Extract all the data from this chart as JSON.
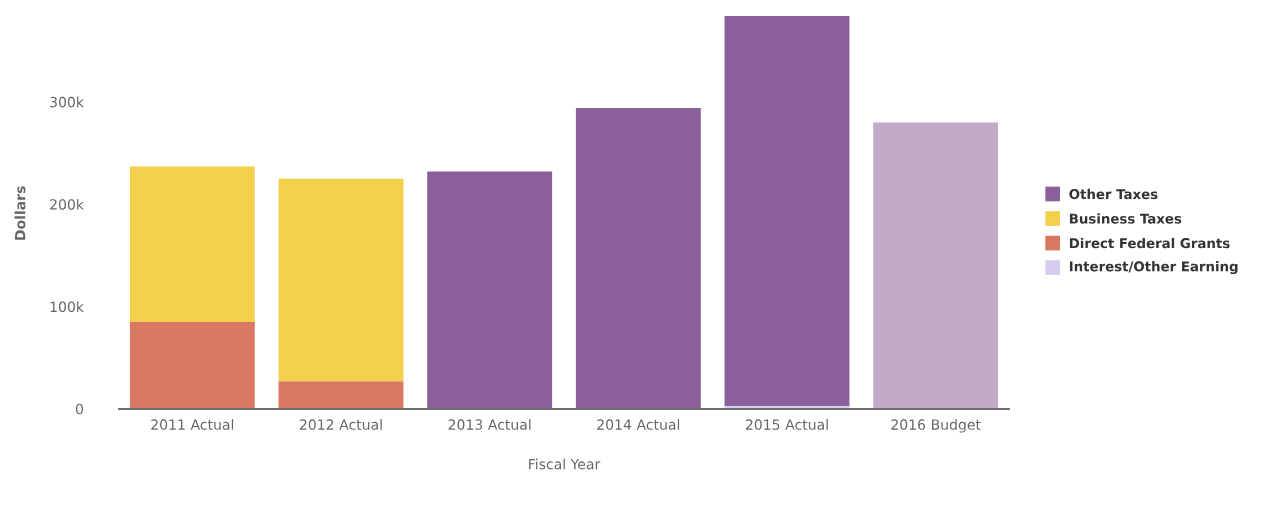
{
  "chart_data": {
    "type": "bar",
    "stacked": true,
    "xlabel": "Fiscal Year",
    "ylabel": "Dollars",
    "categories": [
      "2011 Actual",
      "2012 Actual",
      "2013 Actual",
      "2014 Actual",
      "2015 Actual",
      "2016 Budget"
    ],
    "series": [
      {
        "name": "Interest/Other Earning",
        "color": "#d5ccf0",
        "values": [
          null,
          null,
          null,
          null,
          3000,
          null
        ]
      },
      {
        "name": "Direct Federal Grants",
        "color": "#d97862",
        "values": [
          85000,
          27000,
          null,
          null,
          null,
          null
        ]
      },
      {
        "name": "Business Taxes",
        "color": "#f2d04b",
        "values": [
          152000,
          198000,
          null,
          null,
          null,
          null
        ]
      },
      {
        "name": "Other Taxes",
        "color": "#8b5f9a",
        "colors": [
          "#8b5f9a",
          "#8b5f9a",
          "#8b5f9a",
          "#8b5f9a",
          "#8b5f9a",
          "#c3aac9"
        ],
        "values": [
          null,
          null,
          232000,
          294000,
          381000,
          280000
        ]
      }
    ],
    "ylim": [
      0,
      385000
    ],
    "yticks": [
      0,
      {
        "value": 100000,
        "label": "100k"
      },
      {
        "value": 200000,
        "label": "200k"
      },
      {
        "value": 300000,
        "label": "300k"
      }
    ],
    "grid": false,
    "legend": "right"
  }
}
